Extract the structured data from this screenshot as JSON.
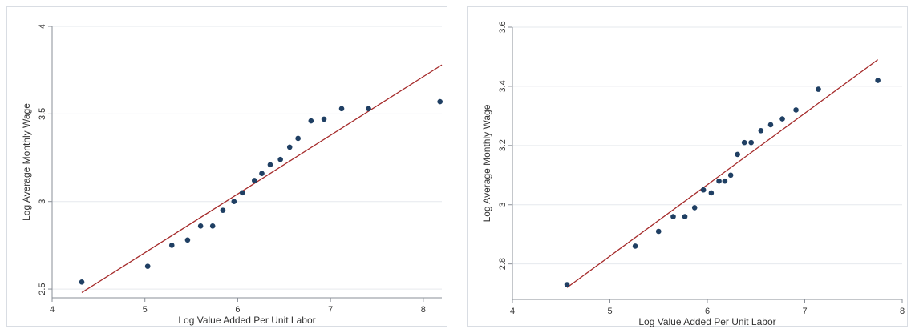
{
  "colors": {
    "fit_line": "#a52a2a",
    "marker": "#1f3f63",
    "grid": "#e6e9ee",
    "axis": "#8a8f97"
  },
  "chart_data": [
    {
      "type": "scatter",
      "xlabel": "Log Value Added Per Unit Labor",
      "ylabel": "Log Average Monthly Wage",
      "xlim": [
        4,
        8.2
      ],
      "ylim": [
        2.45,
        4
      ],
      "xticks": [
        "4",
        "5",
        "6",
        "7",
        "8"
      ],
      "yticks": [
        "2.5",
        "3",
        "3.5",
        "4"
      ],
      "grid": true,
      "points": [
        {
          "x": 4.32,
          "y": 2.54
        },
        {
          "x": 5.03,
          "y": 2.63
        },
        {
          "x": 5.29,
          "y": 2.75
        },
        {
          "x": 5.46,
          "y": 2.78
        },
        {
          "x": 5.6,
          "y": 2.86
        },
        {
          "x": 5.73,
          "y": 2.86
        },
        {
          "x": 5.84,
          "y": 2.95
        },
        {
          "x": 5.96,
          "y": 3.0
        },
        {
          "x": 6.05,
          "y": 3.05
        },
        {
          "x": 6.18,
          "y": 3.12
        },
        {
          "x": 6.26,
          "y": 3.16
        },
        {
          "x": 6.35,
          "y": 3.21
        },
        {
          "x": 6.46,
          "y": 3.24
        },
        {
          "x": 6.56,
          "y": 3.31
        },
        {
          "x": 6.65,
          "y": 3.36
        },
        {
          "x": 6.79,
          "y": 3.46
        },
        {
          "x": 6.93,
          "y": 3.47
        },
        {
          "x": 7.12,
          "y": 3.53
        },
        {
          "x": 7.41,
          "y": 3.53
        },
        {
          "x": 8.18,
          "y": 3.57
        }
      ],
      "fit_line": [
        {
          "x": 4.32,
          "y": 2.48
        },
        {
          "x": 8.2,
          "y": 3.78
        }
      ]
    },
    {
      "type": "scatter",
      "xlabel": "Log Value Added Per Unit Labor",
      "ylabel": "Log Average Monthly Wage",
      "xlim": [
        4,
        8
      ],
      "ylim": [
        2.68,
        3.6
      ],
      "xticks": [
        "4",
        "5",
        "6",
        "7",
        "8"
      ],
      "yticks": [
        "2.8",
        "3",
        "3.2",
        "3.4",
        "3.6"
      ],
      "grid": true,
      "points": [
        {
          "x": 4.56,
          "y": 2.73
        },
        {
          "x": 5.26,
          "y": 2.86
        },
        {
          "x": 5.5,
          "y": 2.91
        },
        {
          "x": 5.65,
          "y": 2.96
        },
        {
          "x": 5.77,
          "y": 2.96
        },
        {
          "x": 5.87,
          "y": 2.99
        },
        {
          "x": 5.96,
          "y": 3.05
        },
        {
          "x": 6.04,
          "y": 3.04
        },
        {
          "x": 6.12,
          "y": 3.08
        },
        {
          "x": 6.18,
          "y": 3.08
        },
        {
          "x": 6.24,
          "y": 3.1
        },
        {
          "x": 6.31,
          "y": 3.17
        },
        {
          "x": 6.38,
          "y": 3.21
        },
        {
          "x": 6.45,
          "y": 3.21
        },
        {
          "x": 6.55,
          "y": 3.25
        },
        {
          "x": 6.65,
          "y": 3.27
        },
        {
          "x": 6.77,
          "y": 3.29
        },
        {
          "x": 6.91,
          "y": 3.32
        },
        {
          "x": 7.14,
          "y": 3.39
        },
        {
          "x": 7.75,
          "y": 3.42
        }
      ],
      "fit_line": [
        {
          "x": 4.56,
          "y": 2.72
        },
        {
          "x": 7.75,
          "y": 3.49
        }
      ]
    }
  ]
}
